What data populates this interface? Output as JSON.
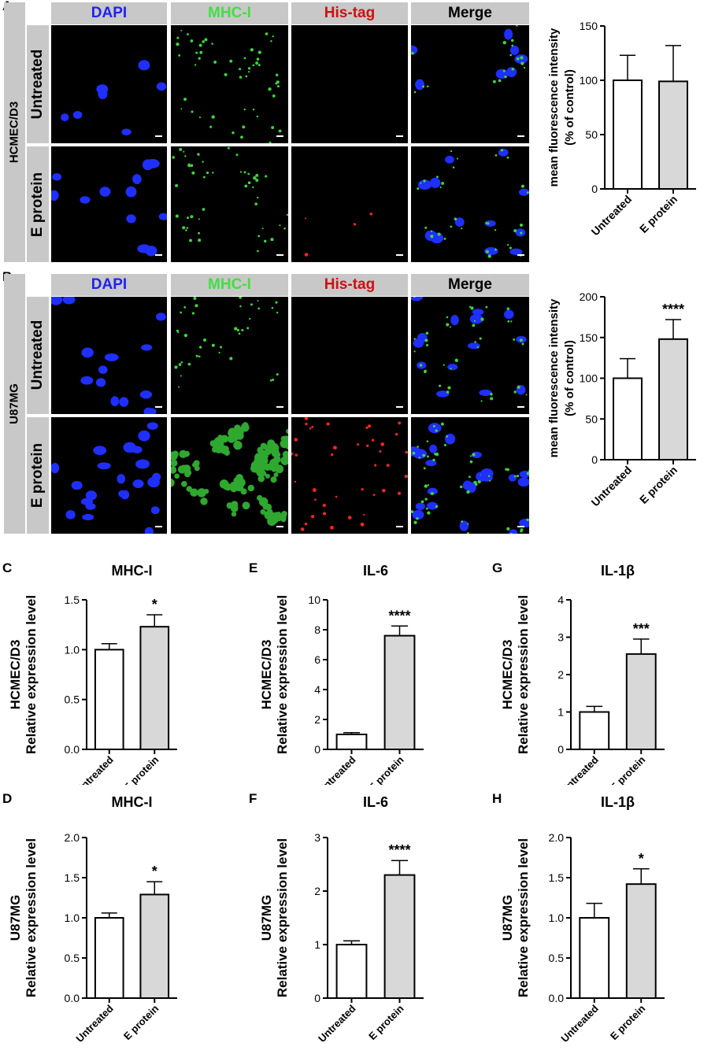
{
  "panel_labels": {
    "A": "A",
    "B": "B",
    "C": "C",
    "D": "D",
    "E": "E",
    "F": "F",
    "G": "G",
    "H": "H"
  },
  "micro": {
    "column_headers": [
      {
        "label": "DAPI",
        "color": "#2222ee"
      },
      {
        "label": "MHC-I",
        "color": "#44dd44"
      },
      {
        "label": "His-tag",
        "color": "#cc1111"
      },
      {
        "label": "Merge",
        "color": "#000000"
      }
    ],
    "rows": {
      "untreated": "Untreated",
      "eprotein": "E protein"
    },
    "cell_lines": {
      "A": "HCMEC/D3",
      "B": "U87MG"
    }
  },
  "chart_data": [
    {
      "id": "A",
      "type": "bar",
      "categories": [
        "Untreated",
        "E protein"
      ],
      "values": [
        100,
        99
      ],
      "error": [
        23,
        33
      ],
      "ylabel": "mean fluorescence intensity",
      "ylabel2": "(% of control)",
      "ylim": [
        0,
        150
      ],
      "yticks": [
        0,
        50,
        100,
        150
      ],
      "significance": "",
      "title": ""
    },
    {
      "id": "B",
      "type": "bar",
      "categories": [
        "Untreated",
        "E protein"
      ],
      "values": [
        100,
        148
      ],
      "error": [
        24,
        24
      ],
      "ylabel": "mean fluorescence intensity",
      "ylabel2": "(% of control)",
      "ylim": [
        0,
        200
      ],
      "yticks": [
        0,
        50,
        100,
        150,
        200
      ],
      "significance": "****",
      "title": ""
    },
    {
      "id": "C",
      "type": "bar",
      "title": "MHC-I",
      "categories": [
        "Untreated",
        "E protein"
      ],
      "values": [
        1.0,
        1.23
      ],
      "error": [
        0.06,
        0.12
      ],
      "ylabel": "Relative expression level",
      "ylabel2": "HCMEC/D3",
      "ylim": [
        0,
        1.5
      ],
      "yticks": [
        "0.0",
        "0.5",
        "1.0",
        "1.5"
      ],
      "significance": "*"
    },
    {
      "id": "E",
      "type": "bar",
      "title": "IL-6",
      "categories": [
        "Untreated",
        "E protein"
      ],
      "values": [
        1.0,
        7.6
      ],
      "error": [
        0.12,
        0.65
      ],
      "ylabel": "Relative expression level",
      "ylabel2": "HCMEC/D3",
      "ylim": [
        0,
        10
      ],
      "yticks": [
        "0",
        "2",
        "4",
        "6",
        "8",
        "10"
      ],
      "significance": "****"
    },
    {
      "id": "G",
      "type": "bar",
      "title": "IL-1β",
      "categories": [
        "Untreated",
        "E protein"
      ],
      "values": [
        1.0,
        2.55
      ],
      "error": [
        0.15,
        0.4
      ],
      "ylabel": "Relative expression level",
      "ylabel2": "HCMEC/D3",
      "ylim": [
        0,
        4
      ],
      "yticks": [
        "0",
        "1",
        "2",
        "3",
        "4"
      ],
      "significance": "***"
    },
    {
      "id": "D",
      "type": "bar",
      "title": "MHC-I",
      "categories": [
        "Untreated",
        "E protein"
      ],
      "values": [
        1.0,
        1.29
      ],
      "error": [
        0.06,
        0.16
      ],
      "ylabel": "Relative expression level",
      "ylabel2": "U87MG",
      "ylim": [
        0,
        2
      ],
      "yticks": [
        "0.0",
        "0.5",
        "1.0",
        "1.5",
        "2.0"
      ],
      "significance": "*"
    },
    {
      "id": "F",
      "type": "bar",
      "title": "IL-6",
      "categories": [
        "Untreated",
        "E protein"
      ],
      "values": [
        1.0,
        2.3
      ],
      "error": [
        0.07,
        0.27
      ],
      "ylabel": "Relative expression level",
      "ylabel2": "U87MG",
      "ylim": [
        0,
        3
      ],
      "yticks": [
        "0",
        "1",
        "2",
        "3"
      ],
      "significance": "****"
    },
    {
      "id": "H",
      "type": "bar",
      "title": "IL-1β",
      "categories": [
        "Untreated",
        "E protein"
      ],
      "values": [
        1.0,
        1.42
      ],
      "error": [
        0.18,
        0.19
      ],
      "ylabel": "Relative expression level",
      "ylabel2": "U87MG",
      "ylim": [
        0,
        2
      ],
      "yticks": [
        "0.0",
        "0.5",
        "1.0",
        "1.5",
        "2.0"
      ],
      "significance": "*"
    }
  ]
}
